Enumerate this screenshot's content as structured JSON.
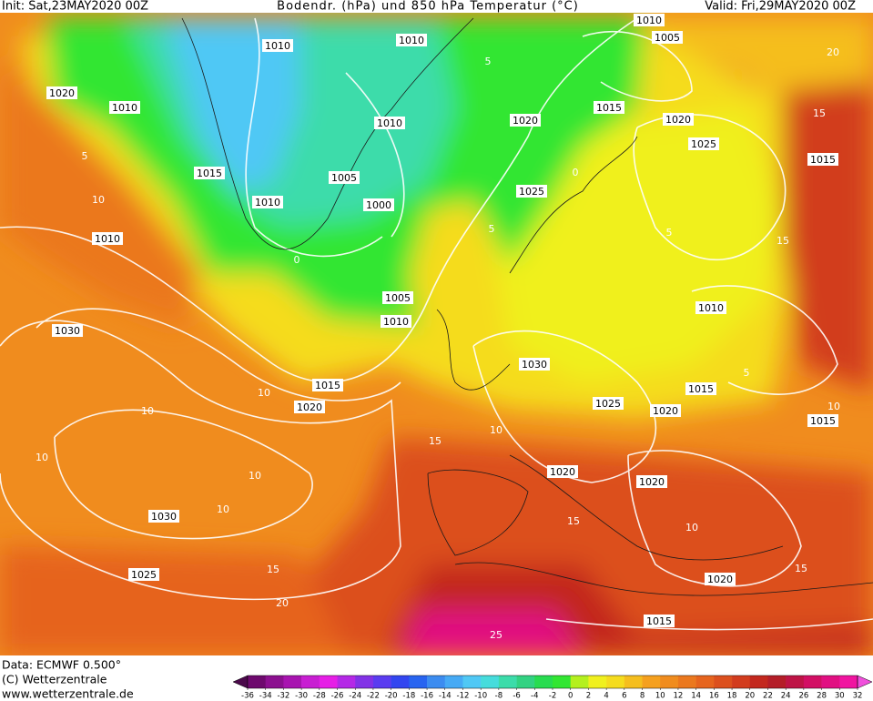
{
  "header": {
    "init": "Init: Sat,23MAY2020 00Z",
    "title": "Bodendr. (hPa) und 850 hPa Temperatur (°C)",
    "valid": "Valid: Fri,29MAY2020 00Z"
  },
  "footer": {
    "data": "Data: ECMWF  0.500°",
    "copyright": "(C) Wetterzentrale",
    "url": "www.wetterzentrale.de"
  },
  "map": {
    "isobar_labels": [
      "1010",
      "1010",
      "1010",
      "1005",
      "1020",
      "1010",
      "1010",
      "1015",
      "1020",
      "1020",
      "1025",
      "1015",
      "1015",
      "1005",
      "1025",
      "1010",
      "1000",
      "1010",
      "1005",
      "1010",
      "1010",
      "1030",
      "1030",
      "1015",
      "1015",
      "1020",
      "1025",
      "1020",
      "1015",
      "1020",
      "1020",
      "1030",
      "1025",
      "1020",
      "1015"
    ],
    "isotherm_labels": [
      "5",
      "10",
      "5",
      "0",
      "5",
      "0",
      "5",
      "10",
      "10",
      "10",
      "10",
      "10",
      "15",
      "10",
      "15",
      "10",
      "15",
      "20",
      "25",
      "15",
      "15",
      "15",
      "20",
      "10",
      "5"
    ]
  },
  "colorbar": {
    "ticks": [
      -36,
      -34,
      -32,
      -30,
      -28,
      -26,
      -24,
      -22,
      -20,
      -18,
      -16,
      -14,
      -12,
      -10,
      -8,
      -6,
      -4,
      -2,
      0,
      2,
      4,
      6,
      8,
      10,
      12,
      14,
      16,
      18,
      20,
      22,
      24,
      26,
      28,
      30,
      32
    ],
    "colors": [
      "#4b0a4b",
      "#6e0a6e",
      "#8c1090",
      "#a814b0",
      "#c81ed2",
      "#e61ee6",
      "#b428e6",
      "#8232e6",
      "#5a3cf0",
      "#3246f0",
      "#2864f0",
      "#3c8cf0",
      "#46aaf5",
      "#50c8f5",
      "#46dcdc",
      "#3cdcaa",
      "#32d282",
      "#28dc50",
      "#32e632",
      "#b4f01e",
      "#f0f01e",
      "#f5dc1e",
      "#f5be1e",
      "#f5a01e",
      "#f08c1e",
      "#eb781e",
      "#e6641e",
      "#dc501e",
      "#d23c1e",
      "#c3281e",
      "#b41e28",
      "#be1446",
      "#d20f64",
      "#e10f82",
      "#f014a0",
      "#f050dc"
    ]
  }
}
